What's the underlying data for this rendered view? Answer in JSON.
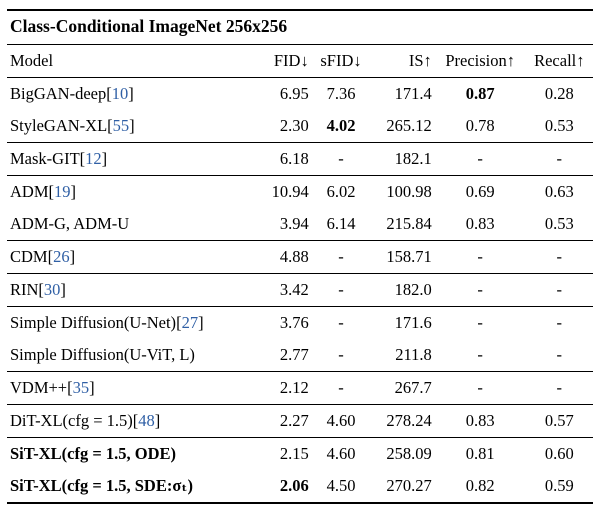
{
  "accent_blue": "#2f5fa5",
  "title": "Class-Conditional ImageNet 256x256",
  "columns": [
    {
      "label": "Model",
      "align": "left",
      "key": "model"
    },
    {
      "label": "FID↓",
      "align": "right",
      "key": "fid"
    },
    {
      "label": "sFID↓",
      "align": "center",
      "key": "sfid"
    },
    {
      "label": "IS↑",
      "align": "right",
      "key": "is"
    },
    {
      "label": "Precision↑",
      "align": "center",
      "key": "precision"
    },
    {
      "label": "Recall↑",
      "align": "center",
      "key": "recall"
    }
  ],
  "groups": [
    {
      "rows": [
        {
          "model": "BigGAN-deep",
          "cite": "10",
          "bold_model": false,
          "values": [
            "6.95",
            "7.36",
            "171.4",
            "0.87",
            "0.28"
          ],
          "bold": [
            false,
            false,
            false,
            true,
            false
          ]
        },
        {
          "model": "StyleGAN-XL",
          "cite": "55",
          "bold_model": false,
          "values": [
            "2.30",
            "4.02",
            "265.12",
            "0.78",
            "0.53"
          ],
          "bold": [
            false,
            true,
            false,
            false,
            false
          ]
        }
      ]
    },
    {
      "rows": [
        {
          "model": "Mask-GIT",
          "cite": "12",
          "bold_model": false,
          "values": [
            "6.18",
            "-",
            "182.1",
            "-",
            "-"
          ],
          "bold": [
            false,
            false,
            false,
            false,
            false
          ]
        }
      ]
    },
    {
      "rows": [
        {
          "model": "ADM",
          "cite": "19",
          "bold_model": false,
          "values": [
            "10.94",
            "6.02",
            "100.98",
            "0.69",
            "0.63"
          ],
          "bold": [
            false,
            false,
            false,
            false,
            false
          ]
        },
        {
          "model": "ADM-G, ADM-U",
          "cite": null,
          "bold_model": false,
          "values": [
            "3.94",
            "6.14",
            "215.84",
            "0.83",
            "0.53"
          ],
          "bold": [
            false,
            false,
            false,
            false,
            false
          ]
        }
      ]
    },
    {
      "rows": [
        {
          "model": "CDM",
          "cite": "26",
          "bold_model": false,
          "values": [
            "4.88",
            "-",
            "158.71",
            "-",
            "-"
          ],
          "bold": [
            false,
            false,
            false,
            false,
            false
          ]
        }
      ]
    },
    {
      "rows": [
        {
          "model": "RIN",
          "cite": "30",
          "bold_model": false,
          "values": [
            "3.42",
            "-",
            "182.0",
            "-",
            "-"
          ],
          "bold": [
            false,
            false,
            false,
            false,
            false
          ]
        }
      ]
    },
    {
      "rows": [
        {
          "model": "Simple Diffusion(U-Net)",
          "cite": "27",
          "bold_model": false,
          "values": [
            "3.76",
            "-",
            "171.6",
            "-",
            "-"
          ],
          "bold": [
            false,
            false,
            false,
            false,
            false
          ]
        },
        {
          "model": "Simple Diffusion(U-ViT, L)",
          "cite": null,
          "bold_model": false,
          "values": [
            "2.77",
            "-",
            "211.8",
            "-",
            "-"
          ],
          "bold": [
            false,
            false,
            false,
            false,
            false
          ]
        }
      ]
    },
    {
      "rows": [
        {
          "model": "VDM++",
          "cite": "35",
          "bold_model": false,
          "values": [
            "2.12",
            "-",
            "267.7",
            "-",
            "-"
          ],
          "bold": [
            false,
            false,
            false,
            false,
            false
          ]
        }
      ]
    },
    {
      "rows": [
        {
          "model": "DiT-XL(cfg = 1.5)",
          "cite": "48",
          "bold_model": false,
          "values": [
            "2.27",
            "4.60",
            "278.24",
            "0.83",
            "0.57"
          ],
          "bold": [
            false,
            false,
            false,
            false,
            false
          ]
        }
      ]
    },
    {
      "rows": [
        {
          "model": "SiT-XL(cfg = 1.5, ODE)",
          "cite": null,
          "bold_model": true,
          "values": [
            "2.15",
            "4.60",
            "258.09",
            "0.81",
            "0.60"
          ],
          "bold": [
            false,
            false,
            false,
            false,
            false
          ]
        },
        {
          "model": "SiT-XL(cfg = 1.5, SDE:σₜ)",
          "cite": null,
          "bold_model": true,
          "values": [
            "2.06",
            "4.50",
            "270.27",
            "0.82",
            "0.59"
          ],
          "bold": [
            true,
            false,
            false,
            false,
            false
          ]
        }
      ]
    }
  ]
}
